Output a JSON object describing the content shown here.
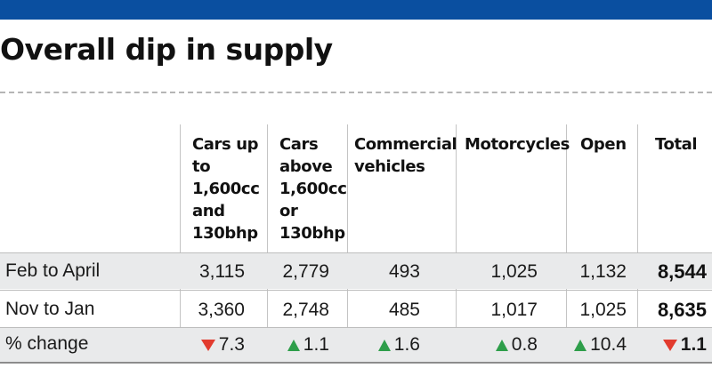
{
  "title": "Overall dip in supply",
  "colors": {
    "header_bar": "#0a4fa0",
    "row_shade": "#e9eaeb",
    "decrease": "#e23b2e",
    "increase": "#2e9e4a"
  },
  "columns": [
    {
      "lines": [
        "Cars up",
        "to",
        "1,600cc",
        "and",
        "130bhp"
      ]
    },
    {
      "lines": [
        "Cars",
        "above",
        "1,600cc",
        "or",
        "130bhp"
      ]
    },
    {
      "lines": [
        "Commercial",
        "vehicles"
      ]
    },
    {
      "lines": [
        "Motorcycles"
      ]
    },
    {
      "lines": [
        "Open"
      ]
    },
    {
      "lines": [
        "Total"
      ]
    }
  ],
  "rows": [
    {
      "label": "Feb to April",
      "values": [
        "3,115",
        "2,779",
        "493",
        "1,025",
        "1,132",
        "8,544"
      ]
    },
    {
      "label": "Nov to Jan",
      "values": [
        "3,360",
        "2,748",
        "485",
        "1,017",
        "1,025",
        "8,635"
      ]
    }
  ],
  "change_row": {
    "label": "% change",
    "values": [
      {
        "value": "7.3",
        "direction": "down",
        "icon": "triangle-down-icon"
      },
      {
        "value": "1.1",
        "direction": "up",
        "icon": "triangle-up-icon"
      },
      {
        "value": "1.6",
        "direction": "up",
        "icon": "triangle-up-icon"
      },
      {
        "value": "0.8",
        "direction": "up",
        "icon": "triangle-up-icon"
      },
      {
        "value": "10.4",
        "direction": "up",
        "icon": "triangle-up-icon"
      },
      {
        "value": "1.1",
        "direction": "down",
        "icon": "triangle-down-icon"
      }
    ]
  }
}
